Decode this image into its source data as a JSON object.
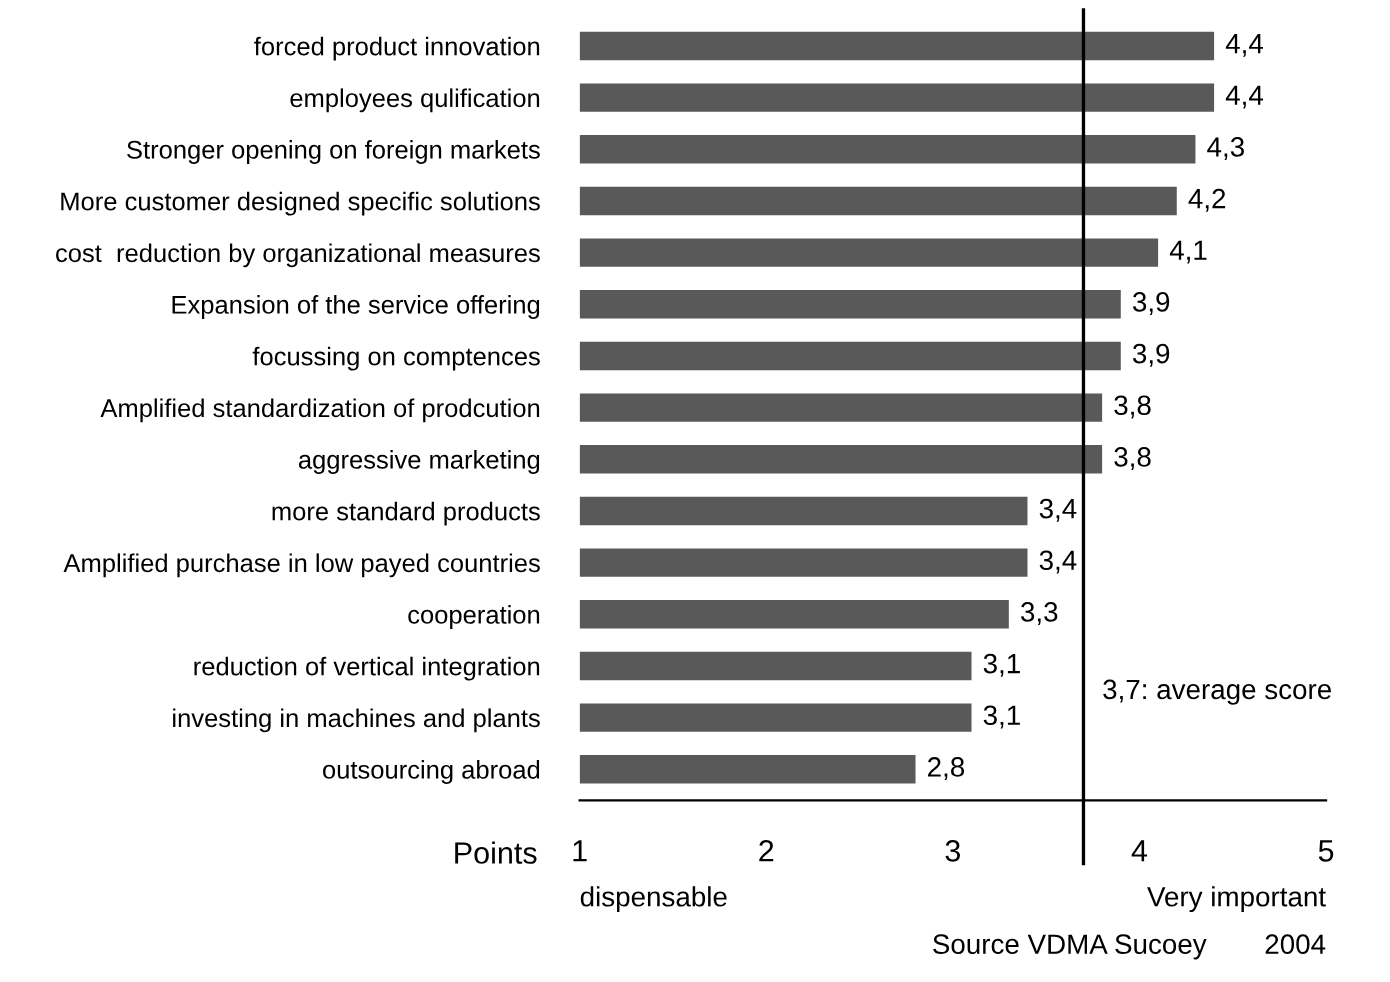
{
  "chart_data": {
    "type": "bar",
    "orientation": "horizontal",
    "categories": [
      "forced product innovation",
      "employees qulification",
      "Stronger opening on foreign markets",
      "More customer designed specific solutions",
      "cost  reduction by organizational measures",
      "Expansion of the service offering",
      "focussing on comptences",
      "Amplified standardization of prodcution",
      "aggressive marketing",
      "more standard products",
      "Amplified purchase in low payed countries",
      "cooperation",
      "reduction of vertical integration",
      "investing in machines and plants",
      "outsourcing abroad"
    ],
    "values": [
      4.4,
      4.4,
      4.3,
      4.2,
      4.1,
      3.9,
      3.9,
      3.8,
      3.8,
      3.4,
      3.4,
      3.3,
      3.1,
      3.1,
      2.8
    ],
    "value_labels": [
      "4,4",
      "4,4",
      "4,3",
      "4,2",
      "4,1",
      "3,9",
      "3,9",
      "3,8",
      "3,8",
      "3,4",
      "3,4",
      "3,3",
      "3,1",
      "3,1",
      "2,8"
    ],
    "color": "#595959",
    "xlim": [
      1,
      5
    ],
    "xticks": [
      1,
      2,
      3,
      4,
      5
    ],
    "xlabel": "Points",
    "ref_lines": [
      {
        "axis": "x",
        "value": 3.7,
        "label": "3,7: average score",
        "color": "#000000"
      }
    ],
    "annotations": [
      "dispensable",
      "Very important",
      "Source VDMA Sucoey",
      "2004"
    ],
    "grid": false,
    "legend": false
  }
}
